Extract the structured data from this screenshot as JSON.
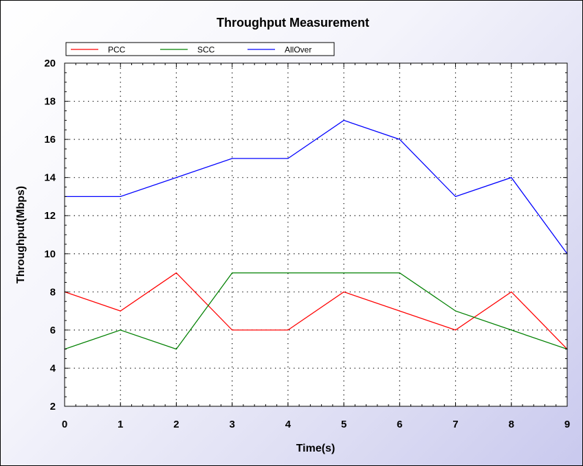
{
  "chart_data": {
    "type": "line",
    "title": "Throughput Measurement",
    "xlabel": "Time(s)",
    "ylabel": "Throughput(Mbps)",
    "x": [
      0,
      1,
      2,
      3,
      4,
      5,
      6,
      7,
      8,
      9
    ],
    "xlim": [
      0,
      9
    ],
    "ylim": [
      2,
      20
    ],
    "xticks": [
      0,
      1,
      2,
      3,
      4,
      5,
      6,
      7,
      8,
      9
    ],
    "yticks": [
      2,
      4,
      6,
      8,
      10,
      12,
      14,
      16,
      18,
      20
    ],
    "grid": true,
    "legend_position": "top-left",
    "series": [
      {
        "name": "PCC",
        "color": "#ff0000",
        "values": [
          8,
          7,
          9,
          6,
          6,
          8,
          7,
          6,
          8,
          5
        ]
      },
      {
        "name": "SCC",
        "color": "#008000",
        "values": [
          5,
          6,
          5,
          9,
          9,
          9,
          9,
          7,
          6,
          5
        ]
      },
      {
        "name": "AllOver",
        "color": "#0000ff",
        "values": [
          13,
          13,
          14,
          15,
          15,
          17,
          16,
          13,
          14,
          10
        ]
      }
    ]
  }
}
